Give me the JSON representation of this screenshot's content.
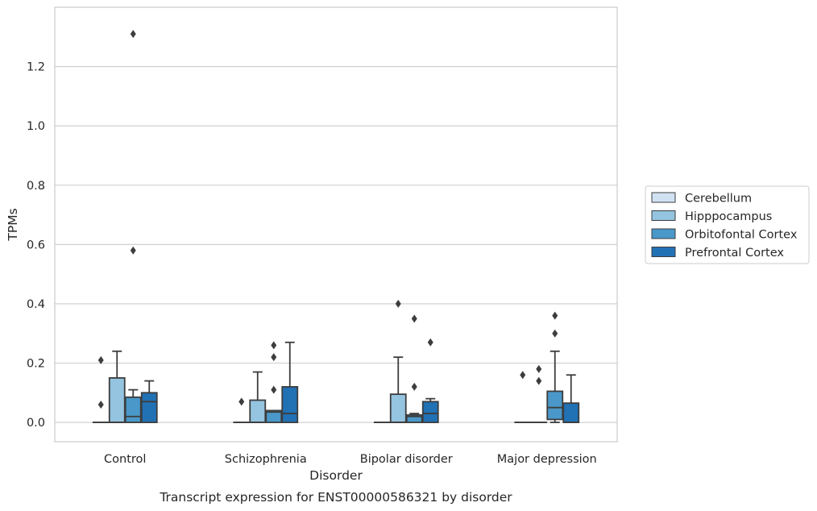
{
  "chart_data": {
    "type": "box",
    "title": "Transcript expression for ENST00000586321 by disorder",
    "xlabel": "Disorder",
    "ylabel": "TPMs",
    "ylim": [
      -0.065,
      1.4
    ],
    "yticks": [
      "0.0",
      "0.2",
      "0.4",
      "0.6",
      "0.8",
      "1.0",
      "1.2"
    ],
    "grid": true,
    "legend_position": "right",
    "categories": [
      "Control",
      "Schizophrenia",
      "Bipolar disorder",
      "Major depression"
    ],
    "series": [
      {
        "name": "Cerebellum",
        "color": "#d0e1f2",
        "boxes": [
          {
            "q1": 0,
            "median": 0,
            "q3": 0,
            "whisker_low": 0,
            "whisker_high": 0,
            "outliers": [
              0.06,
              0.21
            ]
          },
          {
            "q1": 0,
            "median": 0,
            "q3": 0,
            "whisker_low": 0,
            "whisker_high": 0,
            "outliers": [
              0.07
            ]
          },
          {
            "q1": 0,
            "median": 0,
            "q3": 0,
            "whisker_low": 0,
            "whisker_high": 0,
            "outliers": []
          },
          {
            "q1": 0,
            "median": 0,
            "q3": 0,
            "whisker_low": 0,
            "whisker_high": 0,
            "outliers": [
              0.16
            ]
          }
        ]
      },
      {
        "name": "Hipppocampus",
        "color": "#94c4df",
        "boxes": [
          {
            "q1": 0,
            "median": 0,
            "q3": 0.15,
            "whisker_low": 0,
            "whisker_high": 0.24,
            "outliers": []
          },
          {
            "q1": 0,
            "median": 0,
            "q3": 0.075,
            "whisker_low": 0,
            "whisker_high": 0.17,
            "outliers": []
          },
          {
            "q1": 0,
            "median": 0,
            "q3": 0.095,
            "whisker_low": 0,
            "whisker_high": 0.22,
            "outliers": [
              0.4
            ]
          },
          {
            "q1": 0,
            "median": 0,
            "q3": 0,
            "whisker_low": 0,
            "whisker_high": 0,
            "outliers": [
              0.14,
              0.18
            ]
          }
        ]
      },
      {
        "name": "Orbitofontal Cortex",
        "color": "#4a98c9",
        "boxes": [
          {
            "q1": 0,
            "median": 0.02,
            "q3": 0.085,
            "whisker_low": 0,
            "whisker_high": 0.11,
            "outliers": [
              0.58,
              1.31
            ]
          },
          {
            "q1": 0,
            "median": 0.035,
            "q3": 0.04,
            "whisker_low": 0,
            "whisker_high": 0.04,
            "outliers": [
              0.11,
              0.22,
              0.26
            ]
          },
          {
            "q1": 0,
            "median": 0.02,
            "q3": 0.025,
            "whisker_low": 0,
            "whisker_high": 0.03,
            "outliers": [
              0.12,
              0.35
            ]
          },
          {
            "q1": 0.01,
            "median": 0.05,
            "q3": 0.105,
            "whisker_low": 0,
            "whisker_high": 0.24,
            "outliers": [
              0.3,
              0.36
            ]
          }
        ]
      },
      {
        "name": "Prefrontal Cortex",
        "color": "#2171b5",
        "boxes": [
          {
            "q1": 0,
            "median": 0.07,
            "q3": 0.1,
            "whisker_low": 0,
            "whisker_high": 0.14,
            "outliers": []
          },
          {
            "q1": 0,
            "median": 0.03,
            "q3": 0.12,
            "whisker_low": 0,
            "whisker_high": 0.27,
            "outliers": []
          },
          {
            "q1": 0,
            "median": 0.03,
            "q3": 0.07,
            "whisker_low": 0,
            "whisker_high": 0.08,
            "outliers": [
              0.27
            ]
          },
          {
            "q1": 0,
            "median": 0,
            "q3": 0.065,
            "whisker_low": 0,
            "whisker_high": 0.16,
            "outliers": []
          }
        ]
      }
    ]
  }
}
